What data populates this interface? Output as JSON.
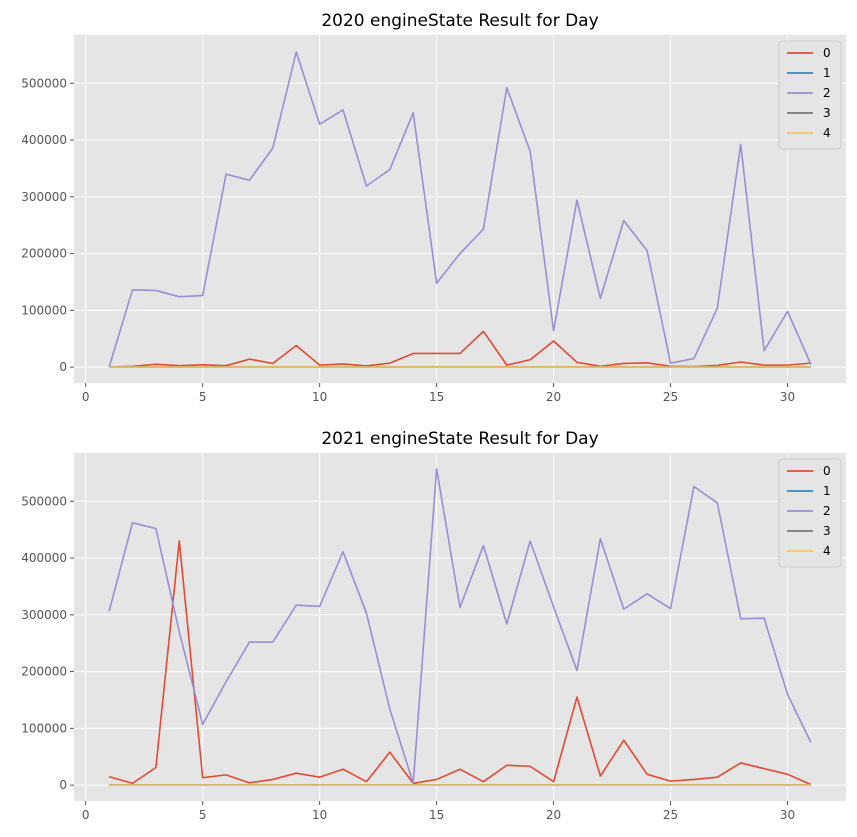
{
  "chart_data": [
    {
      "type": "line",
      "title": "2020 engineState Result for Day",
      "xlabel": "",
      "ylabel": "",
      "xlim": [
        -0.5,
        32.5
      ],
      "ylim": [
        -28000,
        585000
      ],
      "xticks": [
        0,
        5,
        10,
        15,
        20,
        25,
        30
      ],
      "yticks": [
        0,
        100000,
        200000,
        300000,
        400000,
        500000
      ],
      "grid": true,
      "legend": "top-right",
      "x": [
        1,
        2,
        3,
        4,
        5,
        6,
        7,
        8,
        9,
        10,
        11,
        12,
        13,
        14,
        15,
        16,
        17,
        18,
        19,
        20,
        21,
        22,
        23,
        24,
        25,
        26,
        27,
        28,
        29,
        30,
        31
      ],
      "series": [
        {
          "name": "0",
          "color": "#E24A33",
          "values": [
            0,
            1500,
            5000,
            2500,
            4000,
            2500,
            14000,
            6500,
            38000,
            3500,
            5500,
            2000,
            7000,
            24000,
            24000,
            24000,
            63000,
            3500,
            13000,
            46000,
            8500,
            1500,
            6500,
            7500,
            1500,
            1000,
            3000,
            9000,
            3500,
            3500,
            7000
          ]
        },
        {
          "name": "1",
          "color": "#348ABD",
          "values": [
            0,
            0,
            0,
            0,
            0,
            0,
            0,
            0,
            0,
            0,
            0,
            0,
            0,
            0,
            0,
            0,
            0,
            0,
            0,
            0,
            0,
            0,
            0,
            0,
            0,
            0,
            0,
            0,
            0,
            0,
            0
          ]
        },
        {
          "name": "2",
          "color": "#988ED5",
          "values": [
            0,
            136000,
            135000,
            124000,
            126000,
            340000,
            329000,
            386000,
            555000,
            428000,
            453000,
            319000,
            348000,
            448000,
            148000,
            200000,
            243000,
            492000,
            380000,
            64000,
            294000,
            121000,
            258000,
            205000,
            7000,
            15000,
            104000,
            392000,
            29000,
            98000,
            5000
          ]
        },
        {
          "name": "3",
          "color": "#777777",
          "values": [
            0,
            0,
            0,
            0,
            0,
            0,
            0,
            0,
            0,
            0,
            0,
            0,
            0,
            0,
            0,
            0,
            0,
            0,
            0,
            0,
            0,
            0,
            0,
            0,
            0,
            0,
            0,
            0,
            0,
            0,
            0
          ]
        },
        {
          "name": "4",
          "color": "#FBC15E",
          "values": [
            0,
            0,
            0,
            0,
            0,
            0,
            0,
            0,
            0,
            0,
            0,
            0,
            0,
            0,
            0,
            0,
            0,
            0,
            0,
            0,
            0,
            0,
            0,
            0,
            0,
            0,
            0,
            0,
            0,
            0,
            0
          ]
        }
      ]
    },
    {
      "type": "line",
      "title": "2021 engineState Result for Day",
      "xlabel": "",
      "ylabel": "",
      "xlim": [
        -0.5,
        32.5
      ],
      "ylim": [
        -28000,
        585000
      ],
      "xticks": [
        0,
        5,
        10,
        15,
        20,
        25,
        30
      ],
      "yticks": [
        0,
        100000,
        200000,
        300000,
        400000,
        500000
      ],
      "grid": true,
      "legend": "top-right",
      "x": [
        1,
        2,
        3,
        4,
        5,
        6,
        7,
        8,
        9,
        10,
        11,
        12,
        13,
        14,
        15,
        16,
        17,
        18,
        19,
        20,
        21,
        22,
        23,
        24,
        25,
        26,
        27,
        28,
        29,
        30,
        31
      ],
      "series": [
        {
          "name": "0",
          "color": "#E24A33",
          "values": [
            15000,
            3000,
            31000,
            430000,
            13000,
            18000,
            4000,
            10000,
            21000,
            14000,
            28000,
            6000,
            58000,
            3000,
            10000,
            28000,
            6000,
            35000,
            33000,
            6000,
            155000,
            16000,
            79000,
            19000,
            7000,
            10000,
            14000,
            39000,
            29000,
            19000,
            1000
          ]
        },
        {
          "name": "1",
          "color": "#348ABD",
          "values": [
            0,
            0,
            0,
            0,
            0,
            0,
            0,
            0,
            0,
            0,
            0,
            0,
            0,
            0,
            0,
            0,
            0,
            0,
            0,
            0,
            0,
            0,
            0,
            0,
            0,
            0,
            0,
            0,
            0,
            0,
            0
          ]
        },
        {
          "name": "2",
          "color": "#988ED5",
          "values": [
            306000,
            462000,
            452000,
            270000,
            107000,
            182000,
            252000,
            252000,
            317000,
            315000,
            411000,
            303000,
            134000,
            3000,
            557000,
            313000,
            422000,
            284000,
            430000,
            314000,
            202000,
            434000,
            310000,
            337000,
            311000,
            526000,
            497000,
            293000,
            294000,
            160000,
            75000
          ]
        },
        {
          "name": "3",
          "color": "#777777",
          "values": [
            0,
            0,
            0,
            0,
            0,
            0,
            0,
            0,
            0,
            0,
            0,
            0,
            0,
            0,
            0,
            0,
            0,
            0,
            0,
            0,
            0,
            0,
            0,
            0,
            0,
            0,
            0,
            0,
            0,
            0,
            0
          ]
        },
        {
          "name": "4",
          "color": "#FBC15E",
          "values": [
            0,
            0,
            0,
            0,
            0,
            0,
            0,
            0,
            0,
            0,
            0,
            0,
            0,
            0,
            0,
            0,
            0,
            0,
            0,
            0,
            0,
            0,
            0,
            0,
            0,
            0,
            0,
            0,
            0,
            0,
            0
          ]
        }
      ]
    }
  ]
}
